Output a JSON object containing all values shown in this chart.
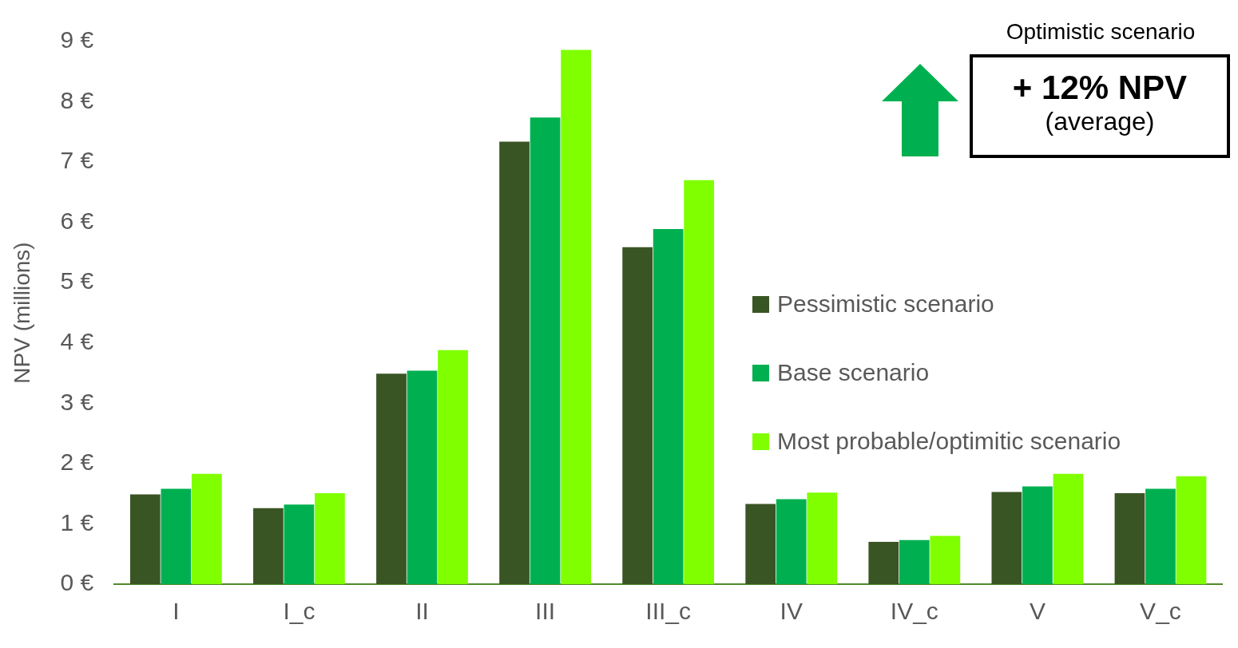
{
  "chart_data": {
    "type": "bar",
    "ylabel": "NPV (millions)",
    "categories": [
      "I",
      "I_c",
      "II",
      "III",
      "III_c",
      "IV",
      "IV_c",
      "V",
      "V_c"
    ],
    "series": [
      {
        "name": "Pessimistic scenario",
        "color": "#3a5524",
        "values": [
          1.49,
          1.26,
          3.49,
          7.34,
          5.59,
          1.33,
          0.7,
          1.53,
          1.51
        ]
      },
      {
        "name": "Base scenario",
        "color": "#00b050",
        "values": [
          1.58,
          1.32,
          3.54,
          7.74,
          5.89,
          1.41,
          0.73,
          1.62,
          1.58
        ]
      },
      {
        "name": "Most probable/optimitic scenario",
        "color": "#80ff00",
        "values": [
          1.83,
          1.51,
          3.88,
          8.86,
          6.7,
          1.52,
          0.8,
          1.83,
          1.79
        ]
      }
    ],
    "ylim": [
      0,
      9
    ],
    "yticks": [
      {
        "value": 0,
        "label": "0 €"
      },
      {
        "value": 1,
        "label": "1 €"
      },
      {
        "value": 2,
        "label": "2 €"
      },
      {
        "value": 3,
        "label": "3 €"
      },
      {
        "value": 4,
        "label": "4 €"
      },
      {
        "value": 5,
        "label": "5 €"
      },
      {
        "value": 6,
        "label": "6 €"
      },
      {
        "value": 7,
        "label": "7 €"
      },
      {
        "value": 8,
        "label": "8 €"
      },
      {
        "value": 9,
        "label": "9 €"
      }
    ],
    "annotations": [
      "Optimistic scenario",
      "+ 12% NPV",
      "(average)"
    ],
    "grid": false,
    "legend": "right"
  }
}
